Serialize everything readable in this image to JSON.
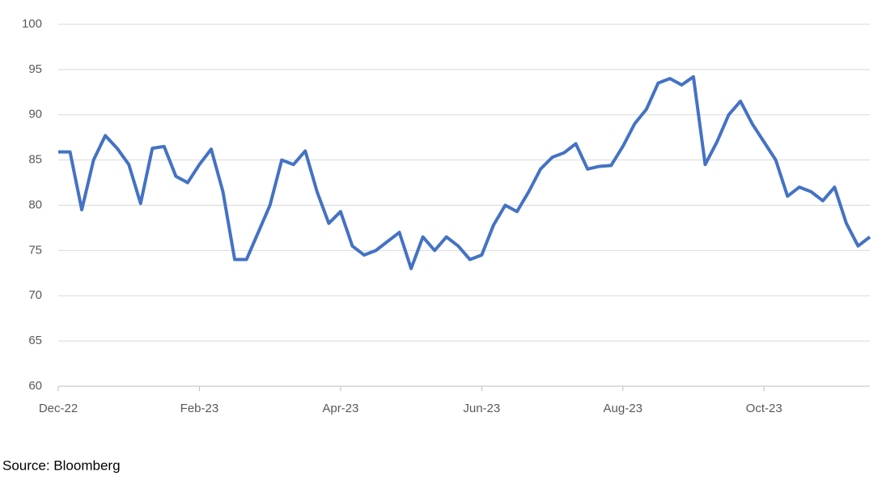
{
  "chart_data": {
    "type": "line",
    "categories": [
      "Dec-22",
      null,
      null,
      null,
      null,
      null,
      null,
      null,
      null,
      null,
      null,
      null,
      "Feb-23",
      null,
      null,
      null,
      null,
      null,
      null,
      null,
      null,
      null,
      null,
      null,
      "Apr-23",
      null,
      null,
      null,
      null,
      null,
      null,
      null,
      null,
      null,
      null,
      null,
      "Jun-23",
      null,
      null,
      null,
      null,
      null,
      null,
      null,
      null,
      null,
      null,
      null,
      "Aug-23",
      null,
      null,
      null,
      null,
      null,
      null,
      null,
      null,
      null,
      null,
      null,
      "Oct-23",
      null,
      null,
      null,
      null,
      null,
      null,
      null,
      null,
      null
    ],
    "series": [
      {
        "color": "#4472c4",
        "values": [
          85.9,
          85.9,
          79.5,
          85,
          87.7,
          86.3,
          84.5,
          80.2,
          86.3,
          86.5,
          83.2,
          82.5,
          84.5,
          86.2,
          81.5,
          74,
          74,
          77,
          80,
          85,
          84.5,
          86,
          81.5,
          78,
          79.3,
          75.5,
          74.5,
          75,
          76,
          77,
          73,
          76.5,
          75,
          76.5,
          75.5,
          74,
          74.5,
          77.8,
          80,
          79.3,
          81.5,
          84,
          85.3,
          85.8,
          86.8,
          84,
          84.3,
          84.4,
          86.5,
          89,
          90.6,
          93.5,
          94,
          93.3,
          94.2,
          84.5,
          87,
          90,
          91.5,
          89,
          87,
          85,
          81,
          82,
          81.5,
          80.5,
          82,
          78,
          75.5,
          76.5
        ]
      }
    ],
    "ylim": [
      60,
      100
    ],
    "yticks": [
      60,
      65,
      70,
      75,
      80,
      85,
      90,
      95,
      100
    ],
    "grid": true,
    "source": "Source: Bloomberg"
  }
}
